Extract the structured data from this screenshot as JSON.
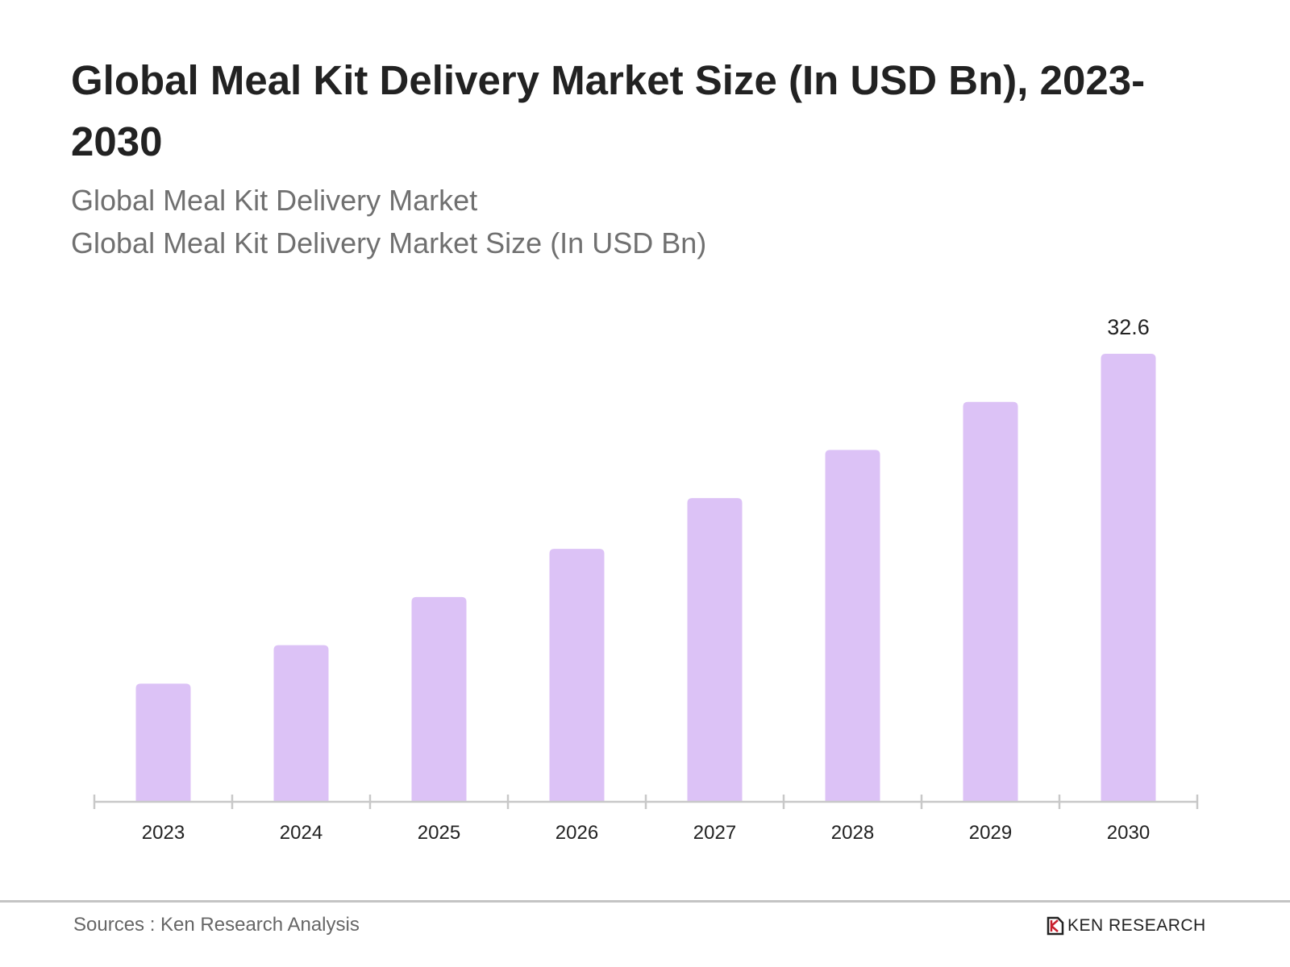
{
  "title": "Global Meal Kit Delivery Market Size (In USD Bn), 2023-2030",
  "subtitle1": "Global Meal Kit Delivery Market",
  "subtitle2": "Global Meal Kit Delivery Market Size (In USD Bn)",
  "source": "Sources : Ken Research Analysis",
  "logo": "KEN RESEARCH",
  "colors": {
    "bar": "#dcc2f6",
    "axis": "#c8c8c8",
    "logo_accent": "#c8202e"
  },
  "chart_data": {
    "type": "bar",
    "categories": [
      "2023",
      "2024",
      "2025",
      "2026",
      "2027",
      "2028",
      "2029",
      "2030"
    ],
    "values": [
      8.6,
      11.4,
      14.9,
      18.4,
      22.1,
      25.6,
      29.1,
      32.6
    ],
    "data_labels": {
      "2030": "32.6"
    },
    "ylim": [
      0,
      32.6
    ],
    "grid": false,
    "legend": "none"
  }
}
